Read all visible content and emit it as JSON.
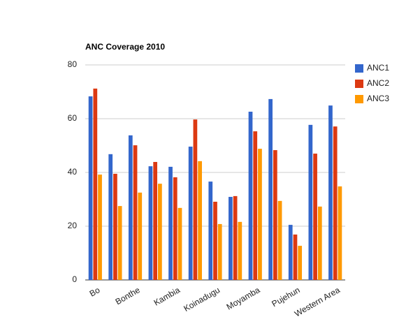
{
  "chart_data": {
    "type": "bar",
    "title": "ANC Coverage 2010",
    "categories": [
      "Bo",
      null,
      "Bonthe",
      null,
      "Kambia",
      null,
      "Koinadugu",
      null,
      "Moyamba",
      null,
      "Pujehun",
      null,
      "Western Area"
    ],
    "series": [
      {
        "name": "ANC1",
        "color": "#3366cc",
        "values": [
          68.3,
          46.8,
          53.8,
          42.3,
          42.1,
          49.6,
          36.6,
          30.9,
          62.6,
          67.3,
          20.5,
          57.7,
          64.9
        ]
      },
      {
        "name": "ANC2",
        "color": "#dc3912",
        "values": [
          71.2,
          39.5,
          50.1,
          43.9,
          38.2,
          59.7,
          29.1,
          31.2,
          55.3,
          48.3,
          16.9,
          47.0,
          57.1
        ]
      },
      {
        "name": "ANC3",
        "color": "#ff9900",
        "values": [
          39.2,
          27.5,
          32.5,
          35.8,
          26.8,
          44.2,
          20.8,
          21.6,
          48.8,
          29.4,
          12.7,
          27.3,
          34.8
        ]
      }
    ],
    "ylim": [
      0,
      80
    ],
    "yticks": [
      0,
      20,
      40,
      60,
      80
    ],
    "grid": true,
    "legend": "right"
  }
}
